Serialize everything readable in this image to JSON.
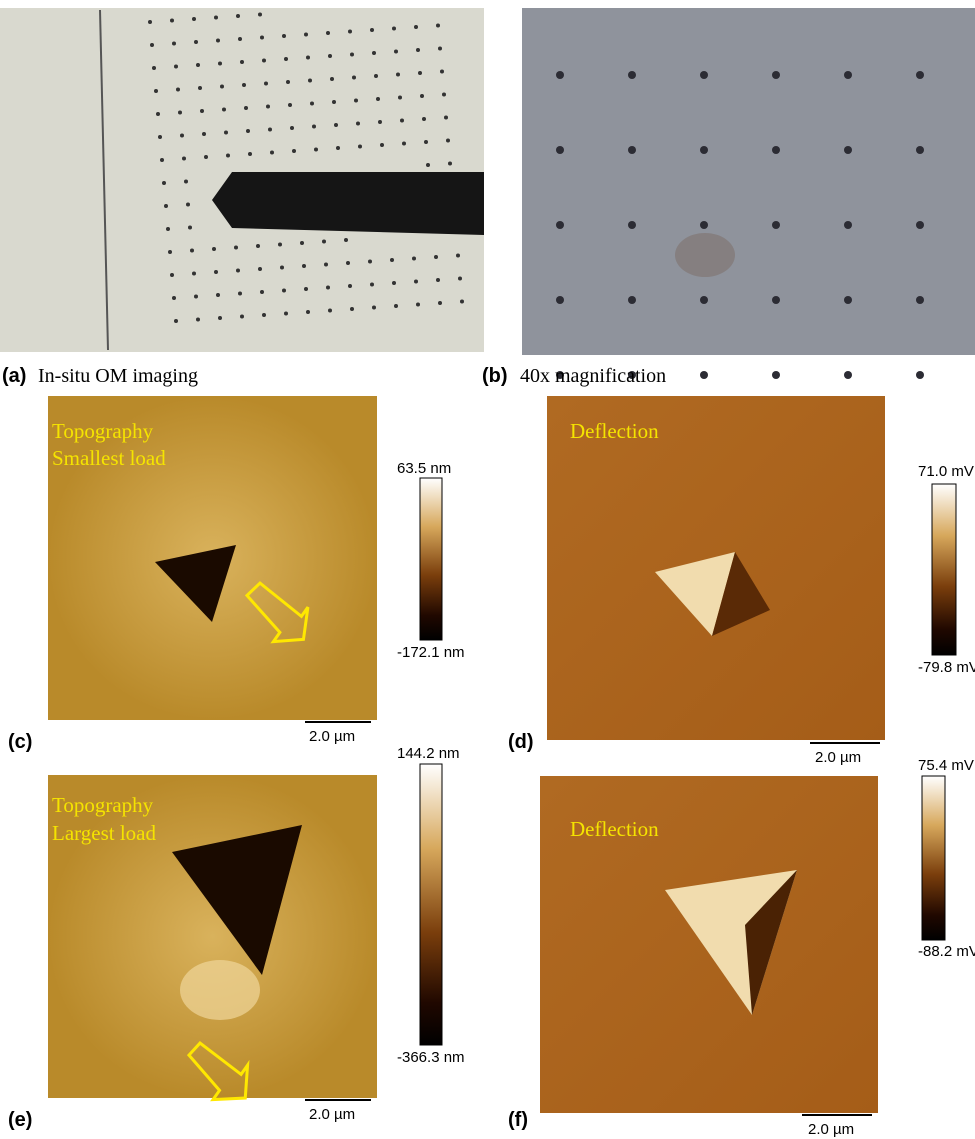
{
  "panels": [
    {
      "label": "(a)",
      "caption": "In-situ OM imaging"
    },
    {
      "label": "(b)",
      "caption": "40x magnification"
    },
    {
      "label": "(c)",
      "overlay": [
        "Topography",
        "Smallest load"
      ],
      "colorbar_max": "63.5 nm",
      "colorbar_min": "-172.1 nm",
      "scale_bar": "2.0 µm"
    },
    {
      "label": "(d)",
      "overlay": [
        "Deflection"
      ],
      "colorbar_max": "71.0 mV",
      "colorbar_min": "-79.8 mV",
      "scale_bar": "2.0 µm"
    },
    {
      "label": "(e)",
      "overlay": [
        "Topography",
        "Largest load"
      ],
      "colorbar_max": "144.2 nm",
      "colorbar_min": "-366.3 nm",
      "scale_bar": "2.0 µm"
    },
    {
      "label": "(f)",
      "overlay": [
        "Deflection"
      ],
      "colorbar_max": "75.4 mV",
      "colorbar_min": "-88.2 mV",
      "scale_bar": "2.0 µm"
    }
  ]
}
